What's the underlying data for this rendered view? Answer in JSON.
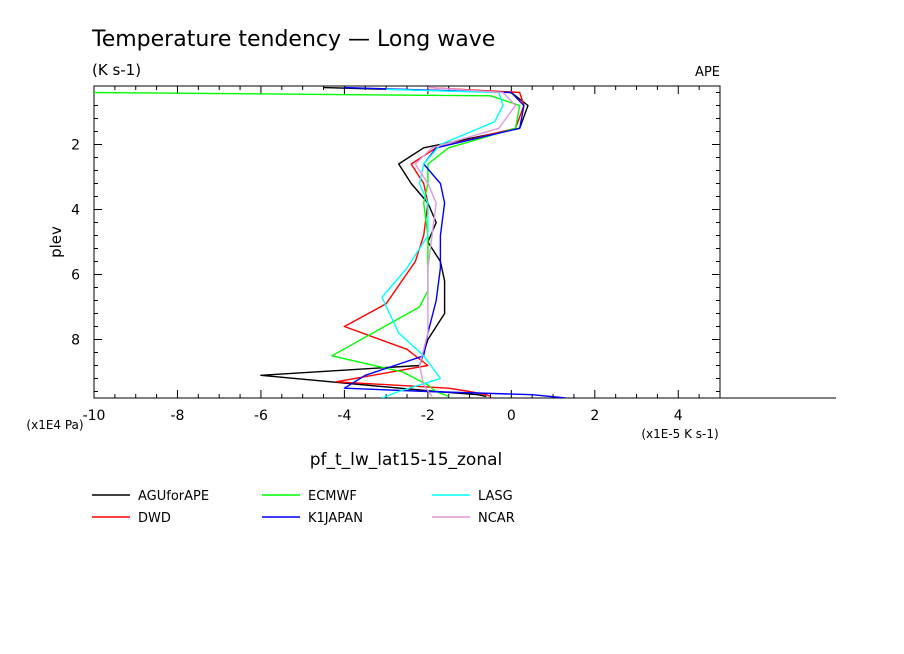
{
  "chart_data": {
    "type": "line",
    "title": "Temperature tendency — Long wave",
    "subtitle": "(K s-1)",
    "tag": "APE",
    "xlabel": "pf_t_lw_lat15-15_zonal",
    "ylabel": "plev",
    "x_unit": "(x1E-5 K s-1)",
    "y_unit": "(x1E4 Pa)",
    "xlim": [
      -10,
      5
    ],
    "ylim": [
      9.8,
      0.2
    ],
    "y_reversed": true,
    "x_ticks": [
      "-10",
      "-8",
      "-6",
      "-4",
      "-2",
      "0",
      "2",
      "4"
    ],
    "x_tick_values": [
      -10,
      -8,
      -6,
      -4,
      -2,
      0,
      2,
      4
    ],
    "y_ticks": [
      "2",
      "4",
      "6",
      "8"
    ],
    "y_tick_values": [
      2,
      4,
      6,
      8
    ],
    "grid": false,
    "legend_position": "bottom",
    "series": [
      {
        "name": "AGUforAPE",
        "color": "#000000",
        "x": [
          -4.5,
          0.0,
          0.4,
          0.2,
          -2.1,
          -2.7,
          -2.4,
          -2.0,
          -1.8,
          -2.0,
          -1.7,
          -1.6,
          -1.6,
          -2.0,
          -2.2,
          -6.0,
          -3.5,
          -1.8,
          -0.8,
          -0.6
        ],
        "y": [
          0.25,
          0.4,
          0.8,
          1.5,
          2.1,
          2.6,
          3.2,
          3.8,
          4.4,
          5.0,
          5.6,
          6.2,
          7.2,
          8.0,
          8.8,
          9.1,
          9.4,
          9.6,
          9.7,
          9.75
        ]
      },
      {
        "name": "DWD",
        "color": "#ff0000",
        "x": [
          -2.0,
          0.2,
          0.3,
          0.1,
          -1.8,
          -2.4,
          -2.1,
          -2.0,
          -2.1,
          -2.3,
          -3.0,
          -4.0,
          -2.5,
          -2.0,
          -4.2,
          -1.5,
          -1.0,
          -0.6,
          -0.5
        ],
        "y": [
          0.25,
          0.4,
          0.8,
          1.5,
          2.1,
          2.6,
          3.2,
          3.8,
          4.8,
          5.6,
          6.9,
          7.6,
          8.3,
          8.8,
          9.3,
          9.5,
          9.6,
          9.7,
          9.75
        ]
      },
      {
        "name": "ECMWF",
        "color": "#00ff00",
        "x": [
          -10.0,
          -0.5,
          0.2,
          0.1,
          -1.5,
          -2.0,
          -2.0,
          -2.1,
          -2.0,
          -2.0,
          -2.0,
          -2.2,
          -4.3,
          -2.6,
          -2.0,
          -1.8,
          -1.5
        ],
        "y": [
          0.4,
          0.5,
          0.8,
          1.5,
          2.1,
          2.6,
          3.2,
          3.8,
          4.8,
          5.8,
          6.5,
          7.0,
          8.5,
          9.0,
          9.4,
          9.6,
          9.75
        ]
      },
      {
        "name": "K1JAPAN",
        "color": "#0000ff",
        "x": [
          -4.0,
          0.0,
          0.3,
          0.2,
          -1.8,
          -2.1,
          -1.7,
          -1.6,
          -1.7,
          -1.7,
          -1.8,
          -2.0,
          -2.1,
          -3.5,
          -4.0,
          -2.0,
          0.5,
          1.3
        ],
        "y": [
          0.25,
          0.4,
          0.8,
          1.5,
          2.1,
          2.6,
          3.2,
          3.8,
          4.8,
          5.8,
          6.8,
          7.8,
          8.5,
          9.1,
          9.5,
          9.6,
          9.7,
          9.8
        ]
      },
      {
        "name": "LASG",
        "color": "#00ffff",
        "x": [
          -3.0,
          -0.3,
          -0.2,
          -0.4,
          -1.7,
          -2.1,
          -2.2,
          -2.0,
          -2.0,
          -2.5,
          -3.1,
          -2.7,
          -2.1,
          -1.7,
          -2.7,
          -3.1
        ],
        "y": [
          0.3,
          0.4,
          0.8,
          1.3,
          2.0,
          2.6,
          3.2,
          3.8,
          4.8,
          5.8,
          6.7,
          7.8,
          8.5,
          9.2,
          9.6,
          9.8
        ]
      },
      {
        "name": "NCAR",
        "color": "#dd99dd",
        "x": [
          -2.0,
          -0.2,
          0.1,
          -0.3,
          -1.9,
          -2.3,
          -2.0,
          -1.8,
          -1.9,
          -2.0,
          -2.0,
          -2.0,
          -2.2,
          -2.1,
          -1.9
        ],
        "y": [
          0.25,
          0.4,
          0.8,
          1.5,
          2.1,
          2.6,
          3.2,
          3.8,
          4.8,
          5.8,
          6.8,
          7.8,
          8.8,
          9.4,
          9.75
        ]
      }
    ]
  }
}
